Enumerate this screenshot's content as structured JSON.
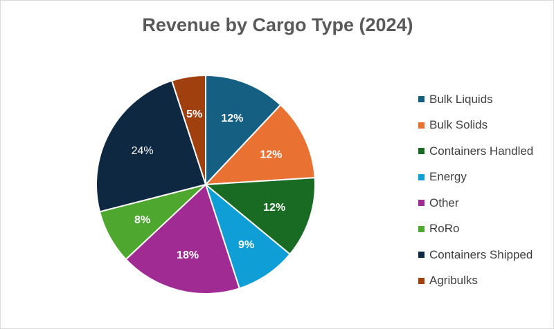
{
  "chart_data": {
    "type": "pie",
    "title": "Revenue by Cargo Type (2024)",
    "categories": [
      "Bulk Liquids",
      "Bulk Solids",
      "Containers Handled",
      "Energy",
      "Other",
      "RoRo",
      "Containers Shipped",
      "Agribulks"
    ],
    "values": [
      12,
      12,
      12,
      9,
      18,
      8,
      24,
      5
    ],
    "labels": [
      "12%",
      "12%",
      "12%",
      "9%",
      "18%",
      "8%",
      "24%",
      "5%"
    ],
    "colors": [
      "#156082",
      "#E97132",
      "#196B24",
      "#0F9ED5",
      "#A02B93",
      "#4EA72E",
      "#0E2841",
      "#A0400E"
    ],
    "legend_position": "right",
    "start": "top-clockwise"
  }
}
